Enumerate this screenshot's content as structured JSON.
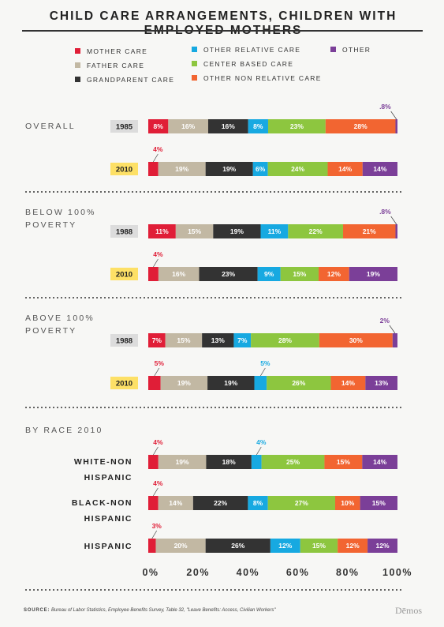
{
  "chart_data": {
    "type": "bar",
    "orientation": "horizontal",
    "stacked": true,
    "title": "CHILD CARE ARRANGEMENTS, CHILDREN WITH EMPLOYED MOTHERS",
    "xlim": [
      0,
      100
    ],
    "x_ticks": [
      "0%",
      "20%",
      "40%",
      "60%",
      "80%",
      "100%"
    ],
    "categories_legend": [
      {
        "name": "MOTHER CARE",
        "color": "#e01e37"
      },
      {
        "name": "FATHER CARE",
        "color": "#c2b8a3"
      },
      {
        "name": "GRANDPARENT CARE",
        "color": "#333333"
      },
      {
        "name": "OTHER RELATIVE CARE",
        "color": "#17a9e1"
      },
      {
        "name": "CENTER BASED CARE",
        "color": "#8dc63f"
      },
      {
        "name": "OTHER NON RELATIVE CARE",
        "color": "#f26531"
      },
      {
        "name": "OTHER",
        "color": "#7b3f98"
      }
    ],
    "groups": [
      {
        "label_lines": [
          "OVERALL"
        ],
        "rows": [
          {
            "label": "1985",
            "label_style": "year-gray",
            "values": [
              8,
              16,
              16,
              8,
              23,
              28,
              0.8
            ],
            "labels": [
              "8%",
              "16%",
              "16%",
              "8%",
              "23%",
              "28%",
              ".8%"
            ]
          },
          {
            "label": "2010",
            "label_style": "year-yellow",
            "values": [
              4,
              19,
              19,
              6,
              24,
              14,
              14
            ],
            "labels": [
              "4%",
              "19%",
              "19%",
              "6%",
              "24%",
              "14%",
              "14%"
            ]
          }
        ]
      },
      {
        "label_lines": [
          "BELOW 100%",
          "POVERTY"
        ],
        "rows": [
          {
            "label": "1988",
            "label_style": "year-gray",
            "values": [
              11,
              15,
              19,
              11,
              22,
              21,
              0.8
            ],
            "labels": [
              "11%",
              "15%",
              "19%",
              "11%",
              "22%",
              "21%",
              ".8%"
            ]
          },
          {
            "label": "2010",
            "label_style": "year-yellow",
            "values": [
              4,
              16,
              23,
              9,
              15,
              12,
              19
            ],
            "labels": [
              "4%",
              "16%",
              "23%",
              "9%",
              "15%",
              "12%",
              "19%"
            ]
          }
        ]
      },
      {
        "label_lines": [
          "ABOVE 100%",
          "POVERTY"
        ],
        "rows": [
          {
            "label": "1988",
            "label_style": "year-gray",
            "values": [
              7,
              15,
              13,
              7,
              28,
              30,
              2
            ],
            "labels": [
              "7%",
              "15%",
              "13%",
              "7%",
              "28%",
              "30%",
              "2%"
            ]
          },
          {
            "label": "2010",
            "label_style": "year-yellow",
            "values": [
              5,
              19,
              19,
              5,
              26,
              14,
              13
            ],
            "labels": [
              "5%",
              "19%",
              "19%",
              "5%",
              "26%",
              "14%",
              "13%"
            ]
          }
        ]
      },
      {
        "label_lines": [
          "BY RACE 2010"
        ],
        "rows": [
          {
            "label": "WHITE-NON HISPANIC",
            "label_style": "race",
            "values": [
              4,
              19,
              18,
              4,
              25,
              15,
              14
            ],
            "labels": [
              "4%",
              "19%",
              "18%",
              "4%",
              "25%",
              "15%",
              "14%"
            ]
          },
          {
            "label": "BLACK-NON HISPANIC",
            "label_style": "race",
            "values": [
              4,
              14,
              22,
              8,
              27,
              10,
              15
            ],
            "labels": [
              "4%",
              "14%",
              "22%",
              "8%",
              "27%",
              "10%",
              "15%"
            ]
          },
          {
            "label": "HISPANIC",
            "label_style": "race",
            "values": [
              3,
              20,
              26,
              12,
              15,
              12,
              12
            ],
            "labels": [
              "3%",
              "20%",
              "26%",
              "12%",
              "15%",
              "12%",
              "12%"
            ]
          }
        ]
      }
    ]
  },
  "source": {
    "key": "SOURCE:",
    "text": " Bureau of Labor Statistics, Employee Benefits Survey, Table 32, \"Leave Benefits: Access, Civilian Workers\""
  },
  "brand": "Dēmos"
}
